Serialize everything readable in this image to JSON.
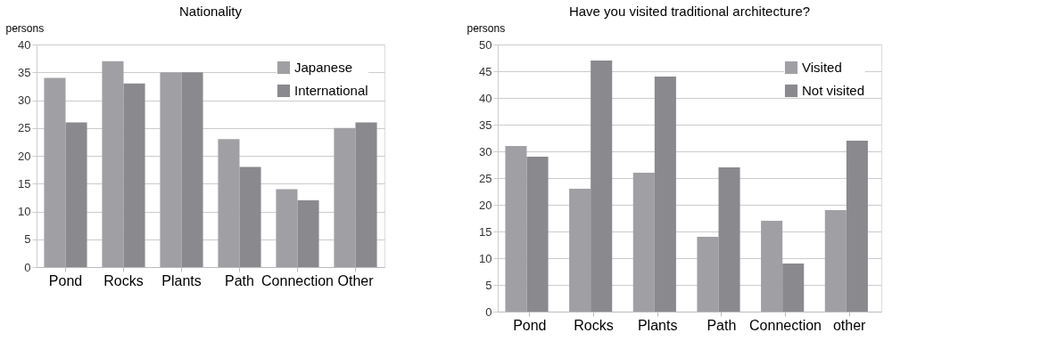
{
  "chart_data": [
    {
      "type": "bar",
      "title": "Nationality",
      "ylabel": "persons",
      "categories": [
        "Pond",
        "Rocks",
        "Plants",
        "Path",
        "Connection",
        "Other"
      ],
      "series": [
        {
          "name": "Japanese",
          "color": "#a0a0a4",
          "values": [
            34,
            37,
            35,
            23,
            14,
            25
          ]
        },
        {
          "name": "International",
          "color": "#8a898e",
          "values": [
            26,
            33,
            35,
            18,
            12,
            26
          ]
        }
      ],
      "ylim": [
        0,
        40
      ],
      "yticks": [
        0,
        5,
        10,
        15,
        20,
        25,
        30,
        35,
        40
      ],
      "grid": "y",
      "legend": "top right"
    },
    {
      "type": "bar",
      "title": "Have you visited traditional architecture?",
      "ylabel": "persons",
      "categories": [
        "Pond",
        "Rocks",
        "Plants",
        "Path",
        "Connection",
        "other"
      ],
      "series": [
        {
          "name": "Visited",
          "color": "#a0a0a4",
          "values": [
            31,
            23,
            26,
            14,
            17,
            19
          ]
        },
        {
          "name": "Not visited",
          "color": "#8a898e",
          "values": [
            29,
            47,
            44,
            27,
            9,
            32
          ]
        }
      ],
      "ylim": [
        0,
        50
      ],
      "yticks": [
        0,
        5,
        10,
        15,
        20,
        25,
        30,
        35,
        40,
        45,
        50
      ],
      "grid": "y",
      "legend": "top right"
    }
  ]
}
